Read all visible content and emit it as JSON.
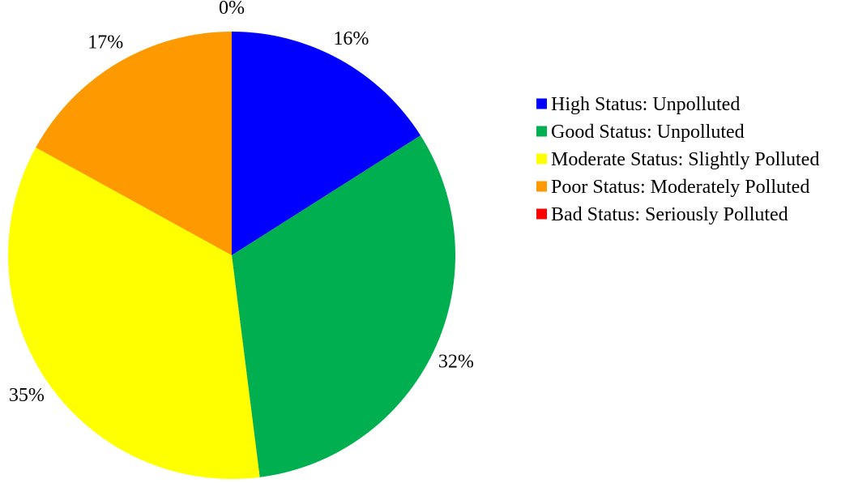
{
  "chart_data": {
    "type": "pie",
    "title": "",
    "categories": [
      "High Status: Unpolluted",
      "Good Status: Unpolluted",
      "Moderate Status: Slightly Polluted",
      "Poor Status: Moderately Polluted",
      "Bad Status: Seriously Polluted"
    ],
    "values": [
      16,
      32,
      35,
      17,
      0
    ],
    "labels": [
      "16%",
      "32%",
      "35%",
      "17%",
      "0%"
    ],
    "colors": [
      "#0000FF",
      "#00B050",
      "#FFFF00",
      "#FF9900",
      "#FF0000"
    ],
    "legend_position": "right",
    "start": "top",
    "direction": "clockwise"
  }
}
